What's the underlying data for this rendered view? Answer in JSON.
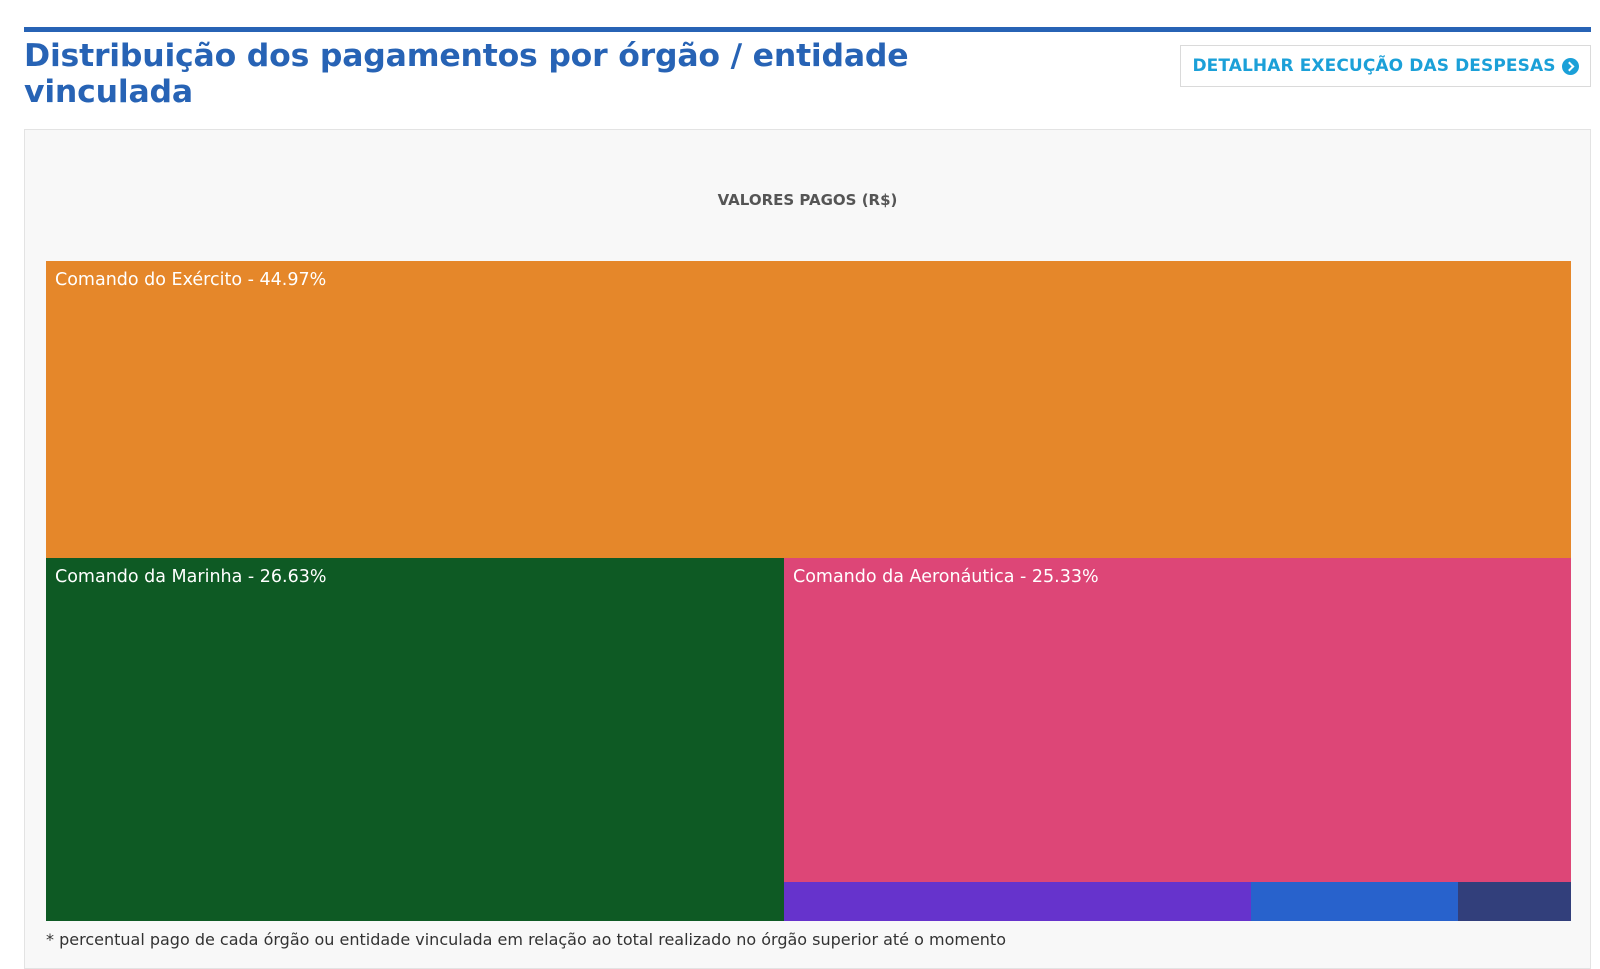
{
  "header": {
    "title": "Distribuição dos pagamentos por órgão / entidade vinculada",
    "detail_button_label": "DETALHAR EXECUÇÃO DAS DESPESAS",
    "detail_button_icon": "chevron-circle-right-icon",
    "accent_color": "#2763b5",
    "button_text_color": "#1ba0d8"
  },
  "chart": {
    "title": "VALORES PAGOS (R$)",
    "footnote": "* percentual pago de cada órgão ou entidade vinculada em relação ao total realizado no órgão superior até o momento"
  },
  "chart_data": {
    "type": "treemap",
    "title": "VALORES PAGOS (R$)",
    "items": [
      {
        "label": "Comando do Exército - 44.97%",
        "name": "Comando do Exército",
        "percent": 44.97,
        "color": "#e5872a"
      },
      {
        "label": "Comando da Marinha - 26.63%",
        "name": "Comando da Marinha",
        "percent": 26.63,
        "color": "#0e5a24"
      },
      {
        "label": "Comando da Aeronáutica - 25.33%",
        "name": "Comando da Aeronáutica",
        "percent": 25.33,
        "color": "#dd4677"
      },
      {
        "label": "",
        "name": "",
        "percent": 1.82,
        "color": "#6633cc"
      },
      {
        "label": "",
        "name": "",
        "percent": 0.81,
        "color": "#2862cc"
      },
      {
        "label": "",
        "name": "",
        "percent": 0.44,
        "color": "#323f7b"
      }
    ]
  }
}
